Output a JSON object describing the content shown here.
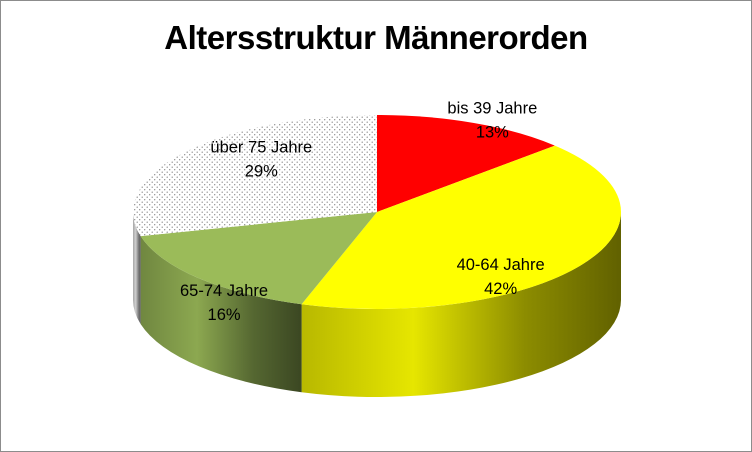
{
  "chart_data": {
    "type": "pie",
    "title": "Altersstruktur Männerorden",
    "three_d": true,
    "legend": "none",
    "slices": [
      {
        "label": "bis 39 Jahre",
        "value": 13,
        "value_label": "13%",
        "color": "#ff0000",
        "fill": "solid"
      },
      {
        "label": "40-64 Jahre",
        "value": 42,
        "value_label": "42%",
        "color": "#ffff00",
        "fill": "solid"
      },
      {
        "label": "65-74 Jahre",
        "value": 16,
        "value_label": "16%",
        "color": "#9bbb59",
        "fill": "solid"
      },
      {
        "label": "über 75 Jahre",
        "value": 29,
        "value_label": "29%",
        "color": "#ffffff",
        "fill": "dotted"
      }
    ]
  }
}
